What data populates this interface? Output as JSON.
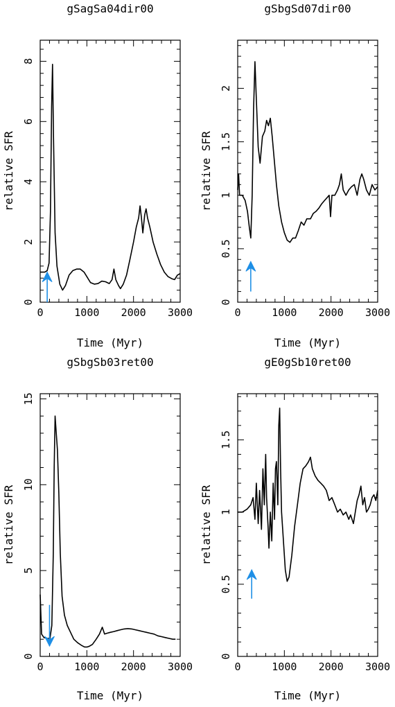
{
  "figure": {
    "x_label": "Time (Myr)",
    "y_label": "relative SFR",
    "arrow_color": "#1e8fe6",
    "line_color": "#000000"
  },
  "chart_data": [
    {
      "type": "line",
      "title": "gSagSa04dir00",
      "xlabel": "Time (Myr)",
      "ylabel": "relative SFR",
      "xlim": [
        0,
        3000
      ],
      "ylim": [
        0,
        8.7
      ],
      "xticks": [
        "0",
        "1000",
        "2000",
        "3000"
      ],
      "yticks": [
        "0",
        "2",
        "4",
        "6",
        "8"
      ],
      "arrow": {
        "direction": "up",
        "x": 150,
        "y_from": 0.0,
        "y_to": 1.0
      },
      "series": [
        {
          "points": [
            [
              0,
              1.0
            ],
            [
              100,
              1.0
            ],
            [
              150,
              1.05
            ],
            [
              190,
              1.3
            ],
            [
              220,
              3.0
            ],
            [
              245,
              6.5
            ],
            [
              265,
              7.9
            ],
            [
              285,
              5.5
            ],
            [
              320,
              2.3
            ],
            [
              360,
              1.2
            ],
            [
              420,
              0.6
            ],
            [
              480,
              0.4
            ],
            [
              540,
              0.55
            ],
            [
              620,
              0.9
            ],
            [
              700,
              1.05
            ],
            [
              780,
              1.1
            ],
            [
              860,
              1.1
            ],
            [
              940,
              1.0
            ],
            [
              1000,
              0.85
            ],
            [
              1080,
              0.65
            ],
            [
              1160,
              0.6
            ],
            [
              1240,
              0.62
            ],
            [
              1320,
              0.7
            ],
            [
              1400,
              0.68
            ],
            [
              1480,
              0.62
            ],
            [
              1540,
              0.75
            ],
            [
              1580,
              1.1
            ],
            [
              1620,
              0.75
            ],
            [
              1680,
              0.55
            ],
            [
              1720,
              0.45
            ],
            [
              1780,
              0.6
            ],
            [
              1850,
              0.9
            ],
            [
              1920,
              1.4
            ],
            [
              2000,
              2.0
            ],
            [
              2060,
              2.5
            ],
            [
              2110,
              2.8
            ],
            [
              2140,
              3.2
            ],
            [
              2170,
              2.8
            ],
            [
              2200,
              2.3
            ],
            [
              2240,
              2.9
            ],
            [
              2270,
              3.1
            ],
            [
              2300,
              2.8
            ],
            [
              2350,
              2.5
            ],
            [
              2420,
              2.0
            ],
            [
              2500,
              1.6
            ],
            [
              2580,
              1.25
            ],
            [
              2660,
              1.0
            ],
            [
              2740,
              0.85
            ],
            [
              2820,
              0.78
            ],
            [
              2880,
              0.75
            ],
            [
              2940,
              0.9
            ],
            [
              3000,
              0.95
            ]
          ]
        }
      ]
    },
    {
      "type": "line",
      "title": "gSbgSd07dir00",
      "xlabel": "Time (Myr)",
      "ylabel": "relative SFR",
      "xlim": [
        0,
        3000
      ],
      "ylim": [
        0,
        2.45
      ],
      "xticks": [
        "0",
        "1000",
        "2000",
        "3000"
      ],
      "yticks": [
        "0",
        "0.5",
        "1",
        "1.5",
        "2"
      ],
      "arrow": {
        "direction": "up",
        "x": 280,
        "y_from": 0.1,
        "y_to": 0.38
      },
      "series": [
        {
          "points": [
            [
              0,
              1.05
            ],
            [
              20,
              1.2
            ],
            [
              40,
              1.0
            ],
            [
              100,
              1.0
            ],
            [
              160,
              0.95
            ],
            [
              210,
              0.85
            ],
            [
              250,
              0.7
            ],
            [
              280,
              0.6
            ],
            [
              310,
              1.0
            ],
            [
              340,
              1.8
            ],
            [
              370,
              2.25
            ],
            [
              400,
              1.9
            ],
            [
              440,
              1.45
            ],
            [
              480,
              1.3
            ],
            [
              530,
              1.55
            ],
            [
              580,
              1.6
            ],
            [
              620,
              1.7
            ],
            [
              660,
              1.65
            ],
            [
              700,
              1.72
            ],
            [
              740,
              1.55
            ],
            [
              780,
              1.35
            ],
            [
              830,
              1.1
            ],
            [
              880,
              0.9
            ],
            [
              940,
              0.75
            ],
            [
              1000,
              0.65
            ],
            [
              1060,
              0.58
            ],
            [
              1120,
              0.56
            ],
            [
              1180,
              0.6
            ],
            [
              1240,
              0.6
            ],
            [
              1300,
              0.67
            ],
            [
              1360,
              0.75
            ],
            [
              1420,
              0.72
            ],
            [
              1480,
              0.78
            ],
            [
              1560,
              0.78
            ],
            [
              1620,
              0.83
            ],
            [
              1680,
              0.85
            ],
            [
              1740,
              0.88
            ],
            [
              1800,
              0.92
            ],
            [
              1860,
              0.95
            ],
            [
              1920,
              0.98
            ],
            [
              1960,
              1.0
            ],
            [
              1990,
              0.8
            ],
            [
              2020,
              1.0
            ],
            [
              2080,
              1.0
            ],
            [
              2140,
              1.05
            ],
            [
              2180,
              1.1
            ],
            [
              2220,
              1.2
            ],
            [
              2260,
              1.05
            ],
            [
              2320,
              1.0
            ],
            [
              2380,
              1.05
            ],
            [
              2440,
              1.08
            ],
            [
              2500,
              1.1
            ],
            [
              2560,
              1.0
            ],
            [
              2620,
              1.15
            ],
            [
              2660,
              1.2
            ],
            [
              2700,
              1.15
            ],
            [
              2760,
              1.05
            ],
            [
              2820,
              1.0
            ],
            [
              2880,
              1.1
            ],
            [
              2940,
              1.05
            ],
            [
              3000,
              1.08
            ]
          ]
        }
      ]
    },
    {
      "type": "line",
      "title": "gSbgSb03ret00",
      "xlabel": "Time (Myr)",
      "ylabel": "relative SFR",
      "xlim": [
        0,
        3000
      ],
      "ylim": [
        0,
        15.3
      ],
      "xticks": [
        "0",
        "1000",
        "2000",
        "3000"
      ],
      "yticks": [
        "0",
        "5",
        "10",
        "15"
      ],
      "arrow": {
        "direction": "down",
        "x": 200,
        "y_from": 3.0,
        "y_to": 0.6
      },
      "series": [
        {
          "points": [
            [
              0,
              3.6
            ],
            [
              30,
              1.3
            ],
            [
              80,
              1.1
            ],
            [
              150,
              1.05
            ],
            [
              210,
              1.05
            ],
            [
              250,
              1.8
            ],
            [
              280,
              6.0
            ],
            [
              300,
              11.0
            ],
            [
              320,
              14.0
            ],
            [
              345,
              13.0
            ],
            [
              370,
              12.0
            ],
            [
              400,
              9.5
            ],
            [
              430,
              6.0
            ],
            [
              470,
              3.5
            ],
            [
              520,
              2.4
            ],
            [
              580,
              1.8
            ],
            [
              650,
              1.4
            ],
            [
              720,
              1.0
            ],
            [
              800,
              0.8
            ],
            [
              880,
              0.65
            ],
            [
              950,
              0.55
            ],
            [
              1010,
              0.55
            ],
            [
              1060,
              0.6
            ],
            [
              1120,
              0.7
            ],
            [
              1200,
              1.0
            ],
            [
              1270,
              1.3
            ],
            [
              1330,
              1.7
            ],
            [
              1380,
              1.3
            ],
            [
              1430,
              1.35
            ],
            [
              1500,
              1.4
            ],
            [
              1580,
              1.45
            ],
            [
              1650,
              1.5
            ],
            [
              1720,
              1.55
            ],
            [
              1800,
              1.6
            ],
            [
              1880,
              1.62
            ],
            [
              1960,
              1.6
            ],
            [
              2040,
              1.55
            ],
            [
              2120,
              1.5
            ],
            [
              2200,
              1.45
            ],
            [
              2280,
              1.4
            ],
            [
              2360,
              1.35
            ],
            [
              2440,
              1.3
            ],
            [
              2520,
              1.2
            ],
            [
              2600,
              1.15
            ],
            [
              2680,
              1.1
            ],
            [
              2760,
              1.05
            ],
            [
              2840,
              1.0
            ],
            [
              2900,
              1.0
            ]
          ]
        }
      ]
    },
    {
      "type": "line",
      "title": "gE0gSb10ret00",
      "xlabel": "Time (Myr)",
      "ylabel": "relative SFR",
      "xlim": [
        0,
        3000
      ],
      "ylim": [
        0,
        1.82
      ],
      "xticks": [
        "0",
        "1000",
        "2000",
        "3000"
      ],
      "yticks": [
        "0",
        "0.5",
        "1",
        "1.5"
      ],
      "arrow": {
        "direction": "up",
        "x": 300,
        "y_from": 0.4,
        "y_to": 0.6
      },
      "series": [
        {
          "points": [
            [
              0,
              1.0
            ],
            [
              100,
              1.0
            ],
            [
              200,
              1.02
            ],
            [
              280,
              1.05
            ],
            [
              330,
              1.1
            ],
            [
              370,
              0.95
            ],
            [
              400,
              1.2
            ],
            [
              440,
              0.92
            ],
            [
              470,
              1.15
            ],
            [
              510,
              0.88
            ],
            [
              540,
              1.3
            ],
            [
              570,
              1.05
            ],
            [
              600,
              1.4
            ],
            [
              620,
              1.1
            ],
            [
              650,
              0.9
            ],
            [
              670,
              0.75
            ],
            [
              700,
              1.0
            ],
            [
              730,
              0.8
            ],
            [
              760,
              1.2
            ],
            [
              790,
              0.95
            ],
            [
              810,
              1.3
            ],
            [
              830,
              1.35
            ],
            [
              860,
              1.05
            ],
            [
              880,
              1.6
            ],
            [
              900,
              1.72
            ],
            [
              920,
              1.3
            ],
            [
              940,
              1.0
            ],
            [
              980,
              0.8
            ],
            [
              1020,
              0.6
            ],
            [
              1060,
              0.52
            ],
            [
              1100,
              0.55
            ],
            [
              1160,
              0.7
            ],
            [
              1220,
              0.9
            ],
            [
              1280,
              1.05
            ],
            [
              1340,
              1.2
            ],
            [
              1400,
              1.3
            ],
            [
              1460,
              1.32
            ],
            [
              1520,
              1.35
            ],
            [
              1560,
              1.38
            ],
            [
              1600,
              1.3
            ],
            [
              1660,
              1.25
            ],
            [
              1720,
              1.22
            ],
            [
              1780,
              1.2
            ],
            [
              1840,
              1.18
            ],
            [
              1900,
              1.15
            ],
            [
              1960,
              1.08
            ],
            [
              2020,
              1.1
            ],
            [
              2080,
              1.05
            ],
            [
              2140,
              1.0
            ],
            [
              2200,
              1.02
            ],
            [
              2260,
              0.98
            ],
            [
              2320,
              1.0
            ],
            [
              2380,
              0.95
            ],
            [
              2420,
              0.98
            ],
            [
              2480,
              0.92
            ],
            [
              2520,
              1.0
            ],
            [
              2560,
              1.08
            ],
            [
              2600,
              1.12
            ],
            [
              2640,
              1.18
            ],
            [
              2680,
              1.05
            ],
            [
              2720,
              1.1
            ],
            [
              2760,
              1.0
            ],
            [
              2800,
              1.02
            ],
            [
              2840,
              1.05
            ],
            [
              2880,
              1.1
            ],
            [
              2920,
              1.12
            ],
            [
              2960,
              1.08
            ],
            [
              3000,
              1.15
            ]
          ]
        }
      ]
    }
  ]
}
